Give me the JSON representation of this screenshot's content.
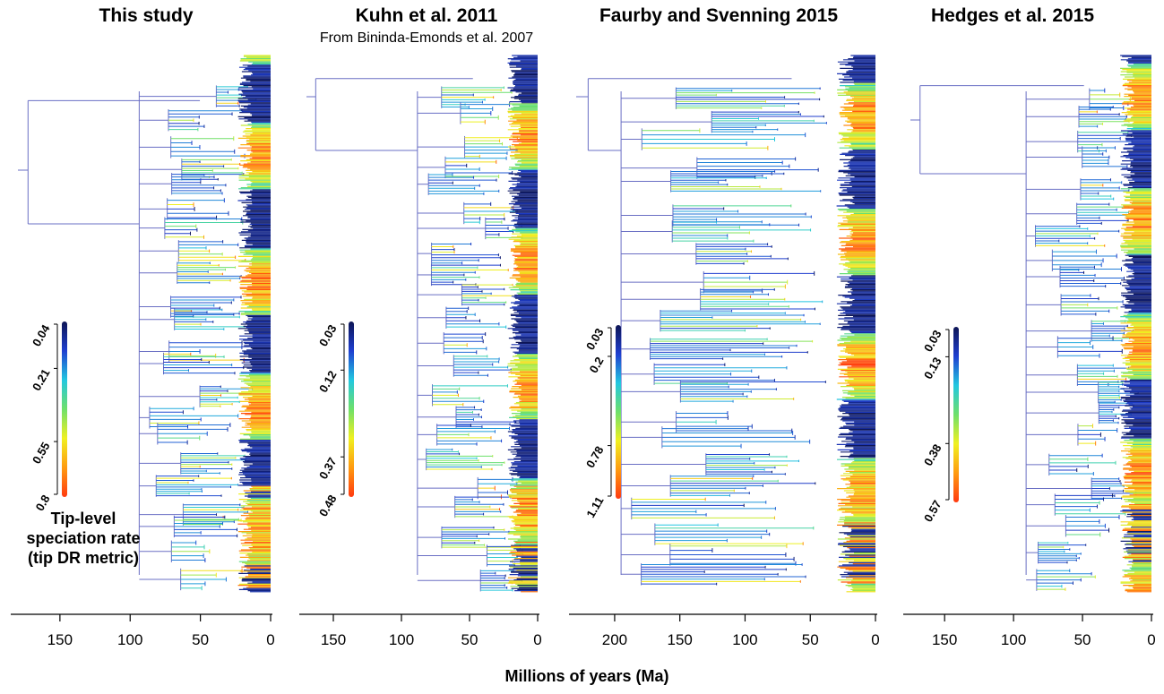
{
  "figure": {
    "xlabel": "Millions of years (Ma)",
    "legend_title_lines": [
      "Tip-level",
      "speciation rate",
      "(tip DR metric)"
    ],
    "colors": {
      "rate_gradient": [
        "#0d1555",
        "#1f3fd0",
        "#22c7e0",
        "#6ee06a",
        "#f0f020",
        "#ff9a10",
        "#ff3a10"
      ],
      "root_branch": "#6a6fc4",
      "axis": "#000000"
    }
  },
  "panels": [
    {
      "title": "This study",
      "subtitle": "",
      "axis_ticks": [
        "150",
        "100",
        "50",
        "0"
      ],
      "xlim": [
        185,
        0
      ],
      "legend_ticks": [
        "0.04",
        "0.21",
        "0.55",
        "0.8"
      ]
    },
    {
      "title": "Kuhn et al. 2011",
      "subtitle": "From Bininda-Emonds et al. 2007",
      "axis_ticks": [
        "150",
        "100",
        "50",
        "0"
      ],
      "xlim": [
        175,
        0
      ],
      "legend_ticks": [
        "0.03",
        "0.12",
        "0.37",
        "0.48"
      ]
    },
    {
      "title": "Faurby and Svenning 2015",
      "subtitle": "",
      "axis_ticks": [
        "200",
        "150",
        "100",
        "50",
        "0"
      ],
      "xlim": [
        235,
        0
      ],
      "legend_ticks": [
        "0.03",
        "0.2",
        "0.78",
        "1.11"
      ]
    },
    {
      "title": "Hedges et al. 2015",
      "subtitle": "",
      "axis_ticks": [
        "150",
        "100",
        "50",
        "0"
      ],
      "xlim": [
        180,
        0
      ],
      "legend_ticks": [
        "0.03",
        "0.13",
        "0.38",
        "0.57"
      ]
    }
  ]
}
